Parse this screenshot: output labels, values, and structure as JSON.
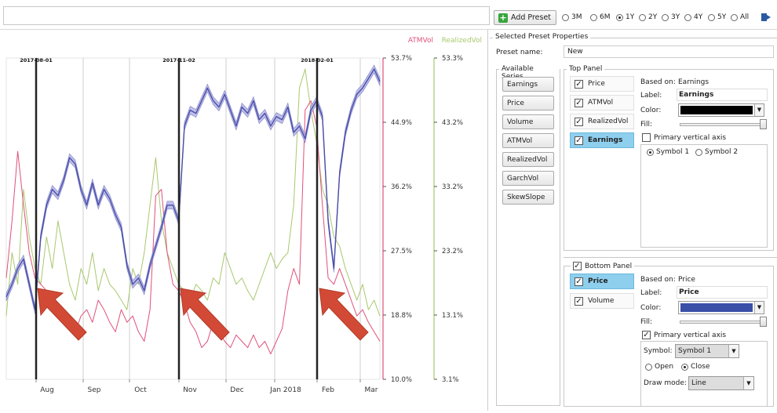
{
  "toolbar": {
    "add_preset_label": "Add Preset",
    "ranges": [
      {
        "label": "3M",
        "selected": false
      },
      {
        "label": "6M",
        "selected": false
      },
      {
        "label": "1Y",
        "selected": true
      },
      {
        "label": "2Y",
        "selected": false
      },
      {
        "label": "3Y",
        "selected": false
      },
      {
        "label": "4Y",
        "selected": false
      },
      {
        "label": "5Y",
        "selected": false
      },
      {
        "label": "All",
        "selected": false
      }
    ]
  },
  "preset": {
    "group_title": "Selected Preset Properties",
    "name_label": "Preset name:",
    "name_value": "New",
    "available_title": "Available Series",
    "available_series": [
      "Earnings",
      "Price",
      "Volume",
      "ATMVol",
      "RealizedVol",
      "GarchVol",
      "SkewSlope"
    ]
  },
  "top_panel": {
    "title": "Top Panel",
    "items": [
      {
        "label": "Price",
        "checked": true,
        "selected": false
      },
      {
        "label": "ATMVol",
        "checked": true,
        "selected": false
      },
      {
        "label": "RealizedVol",
        "checked": true,
        "selected": false
      },
      {
        "label": "Earnings",
        "checked": true,
        "selected": true
      }
    ],
    "based_on_label": "Based on:",
    "based_on_value": "Earnings",
    "label_label": "Label:",
    "label_value": "Earnings",
    "color_label": "Color:",
    "color_value": "#000000",
    "fill_label": "Fill:",
    "primary_axis_label": "Primary vertical axis",
    "primary_axis_checked": false,
    "symbol1": "Symbol 1",
    "symbol2": "Symbol 2"
  },
  "bottom_panel": {
    "title": "Bottom Panel",
    "checked": true,
    "items": [
      {
        "label": "Price",
        "checked": true,
        "selected": true
      },
      {
        "label": "Volume",
        "checked": true,
        "selected": false
      }
    ],
    "based_on_label": "Based on:",
    "based_on_value": "Price",
    "label_label": "Label:",
    "label_value": "Price",
    "color_label": "Color:",
    "color_value": "#3a4fa8",
    "fill_label": "Fill:",
    "primary_axis_label": "Primary vertical axis",
    "primary_axis_checked": true,
    "symbol_label": "Symbol:",
    "symbol_value": "Symbol 1",
    "open_label": "Open",
    "close_label": "Close",
    "draw_mode_label": "Draw mode:",
    "draw_mode_value": "Line"
  },
  "chart_data": {
    "type": "line",
    "legend": [
      "ATMVol",
      "RealizedVol"
    ],
    "legend_colors": {
      "ATMVol": "#e0507a",
      "RealizedVol": "#a8c86e",
      "Price": "#4a4fa8"
    },
    "x_ticks": [
      "Aug",
      "Sep",
      "Oct",
      "Nov",
      "Dec",
      "Jan 2018",
      "Feb",
      "Mar"
    ],
    "right_axis_1": [
      "53.7%",
      "44.9%",
      "36.2%",
      "27.5%",
      "18.8%",
      "10.0%"
    ],
    "right_axis_2": [
      "53.3%",
      "43.2%",
      "33.2%",
      "23.2%",
      "13.1%",
      "3.1%"
    ],
    "earnings_labels": [
      "2017-08-01",
      "2017-11-02",
      "2018-02-01"
    ],
    "price_series": [
      0.26,
      0.3,
      0.35,
      0.38,
      0.3,
      0.22,
      0.45,
      0.55,
      0.6,
      0.58,
      0.63,
      0.7,
      0.68,
      0.6,
      0.55,
      0.62,
      0.55,
      0.6,
      0.57,
      0.52,
      0.48,
      0.36,
      0.3,
      0.32,
      0.28,
      0.36,
      0.42,
      0.48,
      0.55,
      0.55,
      0.5,
      0.8,
      0.85,
      0.84,
      0.88,
      0.92,
      0.88,
      0.86,
      0.9,
      0.85,
      0.8,
      0.86,
      0.84,
      0.88,
      0.82,
      0.84,
      0.8,
      0.83,
      0.82,
      0.86,
      0.78,
      0.8,
      0.76,
      0.85,
      0.88,
      0.83,
      0.5,
      0.35,
      0.65,
      0.78,
      0.85,
      0.9,
      0.92,
      0.95,
      0.98,
      0.94
    ],
    "atmvol_series": [
      0.32,
      0.5,
      0.72,
      0.55,
      0.4,
      0.32,
      0.3,
      0.28,
      0.25,
      0.2,
      0.18,
      0.2,
      0.15,
      0.2,
      0.22,
      0.18,
      0.25,
      0.22,
      0.18,
      0.15,
      0.22,
      0.18,
      0.2,
      0.15,
      0.12,
      0.22,
      0.58,
      0.6,
      0.4,
      0.3,
      0.28,
      0.24,
      0.18,
      0.15,
      0.1,
      0.12,
      0.18,
      0.15,
      0.12,
      0.1,
      0.14,
      0.12,
      0.1,
      0.14,
      0.1,
      0.12,
      0.08,
      0.12,
      0.16,
      0.28,
      0.35,
      0.3,
      0.85,
      0.88,
      0.8,
      0.55,
      0.32,
      0.3,
      0.35,
      0.3,
      0.25,
      0.2,
      0.22,
      0.18,
      0.15,
      0.12
    ],
    "realizedvol_series": [
      0.2,
      0.4,
      0.3,
      0.6,
      0.45,
      0.35,
      0.3,
      0.45,
      0.35,
      0.5,
      0.4,
      0.3,
      0.25,
      0.35,
      0.3,
      0.4,
      0.28,
      0.35,
      0.3,
      0.28,
      0.25,
      0.22,
      0.35,
      0.3,
      0.4,
      0.55,
      0.7,
      0.5,
      0.4,
      0.35,
      0.3,
      0.28,
      0.25,
      0.3,
      0.28,
      0.25,
      0.32,
      0.3,
      0.4,
      0.35,
      0.3,
      0.32,
      0.28,
      0.25,
      0.3,
      0.35,
      0.4,
      0.35,
      0.38,
      0.4,
      0.55,
      0.92,
      0.98,
      0.85,
      0.75,
      0.6,
      0.55,
      0.45,
      0.42,
      0.35,
      0.3,
      0.25,
      0.3,
      0.22,
      0.25,
      0.2
    ]
  }
}
